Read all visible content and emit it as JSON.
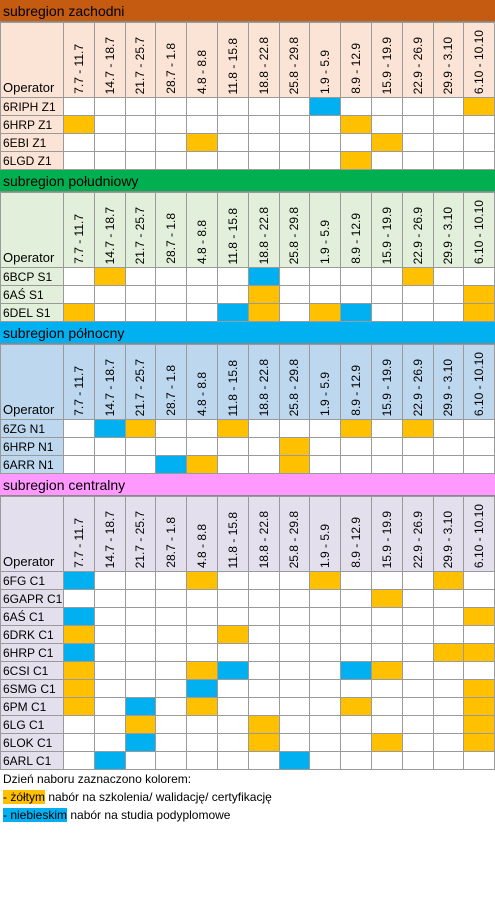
{
  "date_columns": [
    "7.7 - 11.7",
    "14.7 - 18.7",
    "21.7 - 25.7",
    "28.7 - 1.8",
    "4.8 - 8.8",
    "11.8 - 15.8",
    "18.8 - 22.8",
    "25.8 - 29.8",
    "1.9 - 5.9",
    "8.9 - 12.9",
    "15.9 - 19.9",
    "22.9 - 26.9",
    "29.9 - 3.10",
    "6.10 - 10.10"
  ],
  "operator_label": "Operator",
  "sections": [
    {
      "title": "subregion zachodni",
      "header_color": "#c55a11",
      "body_color": "#fbe4d5",
      "rows": [
        {
          "op": "6RIPH Z1",
          "cells": [
            "",
            "",
            "",
            "",
            "",
            "",
            "",
            "",
            "b",
            "",
            "",
            "",
            "",
            "y"
          ]
        },
        {
          "op": "6HRP Z1",
          "cells": [
            "y",
            "",
            "",
            "",
            "",
            "",
            "",
            "",
            "",
            "y",
            "",
            "",
            "",
            ""
          ]
        },
        {
          "op": "6EBI Z1",
          "cells": [
            "",
            "",
            "",
            "",
            "y",
            "",
            "",
            "",
            "",
            "",
            "y",
            "",
            "",
            ""
          ]
        },
        {
          "op": "6LGD Z1",
          "cells": [
            "",
            "",
            "",
            "",
            "",
            "",
            "",
            "",
            "",
            "y",
            "",
            "",
            "",
            ""
          ]
        }
      ]
    },
    {
      "title": "subregion południowy",
      "header_color": "#00b050",
      "body_color": "#e2efda",
      "rows": [
        {
          "op": "6BCP S1",
          "cells": [
            "",
            "y",
            "",
            "",
            "",
            "",
            "b",
            "",
            "",
            "",
            "",
            "y",
            "",
            ""
          ]
        },
        {
          "op": "6AŚ S1",
          "cells": [
            "",
            "",
            "",
            "",
            "",
            "",
            "y",
            "",
            "",
            "",
            "",
            "",
            "",
            "y"
          ]
        },
        {
          "op": "6DEL S1",
          "cells": [
            "y",
            "",
            "",
            "",
            "",
            "b",
            "y",
            "",
            "y",
            "b",
            "",
            "",
            "",
            "y"
          ]
        }
      ]
    },
    {
      "title": "subregion północny",
      "header_color": "#00b0f0",
      "body_color": "#bdd7ee",
      "rows": [
        {
          "op": "6ZG N1",
          "cells": [
            "",
            "b",
            "y",
            "",
            "",
            "y",
            "",
            "",
            "",
            "y",
            "",
            "y",
            "",
            ""
          ]
        },
        {
          "op": "6HRP N1",
          "cells": [
            "",
            "",
            "",
            "",
            "",
            "",
            "",
            "y",
            "",
            "",
            "",
            "",
            "",
            ""
          ]
        },
        {
          "op": "6ARR N1",
          "cells": [
            "",
            "",
            "",
            "b",
            "y",
            "",
            "",
            "y",
            "",
            "",
            "",
            "",
            "",
            ""
          ]
        }
      ]
    },
    {
      "title": "subregion centralny",
      "header_color": "#ff99ff",
      "body_color": "#e4dfec",
      "rows": [
        {
          "op": "6FG C1",
          "cells": [
            "b",
            "",
            "",
            "",
            "y",
            "",
            "",
            "",
            "y",
            "",
            "",
            "",
            "y",
            ""
          ]
        },
        {
          "op": "6GAPR C1",
          "cells": [
            "",
            "",
            "",
            "",
            "",
            "",
            "",
            "",
            "",
            "",
            "y",
            "",
            "",
            ""
          ]
        },
        {
          "op": "6AŚ C1",
          "cells": [
            "b",
            "",
            "",
            "",
            "",
            "",
            "",
            "",
            "",
            "",
            "",
            "",
            "",
            "y"
          ]
        },
        {
          "op": "6DRK C1",
          "cells": [
            "y",
            "",
            "",
            "",
            "",
            "y",
            "",
            "",
            "",
            "",
            "",
            "",
            "",
            ""
          ]
        },
        {
          "op": "6HRP C1",
          "cells": [
            "b",
            "",
            "",
            "",
            "",
            "",
            "",
            "",
            "",
            "",
            "",
            "",
            "y",
            "y"
          ]
        },
        {
          "op": "6CSI C1",
          "cells": [
            "y",
            "",
            "",
            "",
            "y",
            "b",
            "",
            "",
            "",
            "b",
            "y",
            "",
            "",
            ""
          ]
        },
        {
          "op": "6SMG C1",
          "cells": [
            "y",
            "",
            "",
            "",
            "b",
            "",
            "",
            "",
            "",
            "",
            "",
            "",
            "",
            "y"
          ]
        },
        {
          "op": "6PM C1",
          "cells": [
            "y",
            "",
            "b",
            "",
            "y",
            "",
            "",
            "",
            "",
            "y",
            "",
            "",
            "",
            "y"
          ]
        },
        {
          "op": "6LG C1",
          "cells": [
            "",
            "",
            "y",
            "",
            "",
            "",
            "y",
            "",
            "",
            "",
            "",
            "",
            "",
            "y"
          ]
        },
        {
          "op": "6LOK C1",
          "cells": [
            "",
            "",
            "b",
            "",
            "",
            "",
            "y",
            "",
            "",
            "",
            "y",
            "",
            "",
            "y"
          ]
        },
        {
          "op": "6ARL C1",
          "cells": [
            "",
            "b",
            "",
            "",
            "",
            "",
            "",
            "b",
            "",
            "",
            "",
            "",
            "",
            ""
          ]
        }
      ]
    }
  ],
  "legend": {
    "intro": "Dzień naboru zaznaczono kolorem:",
    "yellow_key": "- żółtym",
    "yellow_text": " nabór na szkolenia/ walidację/ certyfikację",
    "blue_key": "- niebieskim",
    "blue_text": " nabór na studia podyplomowe"
  }
}
